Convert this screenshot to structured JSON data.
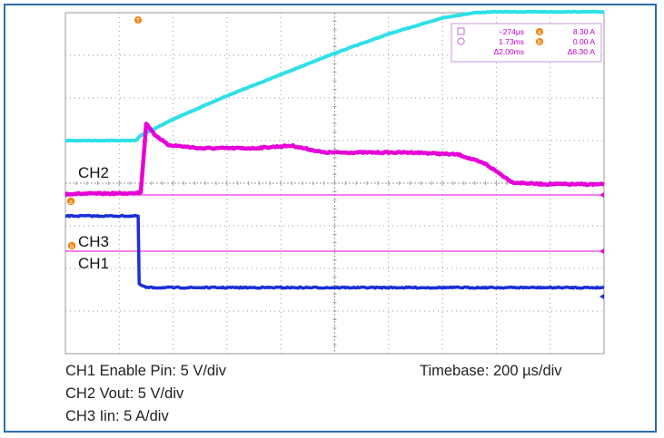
{
  "chart_data": {
    "type": "line",
    "title": "",
    "x_unit": "µs",
    "xlim": [
      -100,
      1900
    ],
    "grid": true,
    "grid_divisions": {
      "x": 10,
      "y": 8
    },
    "series": [
      {
        "name": "CH2",
        "scale": "5 V/div",
        "color": "#2ee0e8",
        "points_div": [
          [
            0.0,
            5.0
          ],
          [
            1.3,
            5.0
          ],
          [
            1.4,
            5.12
          ],
          [
            2.0,
            5.5
          ],
          [
            3.0,
            6.05
          ],
          [
            4.0,
            6.55
          ],
          [
            5.0,
            7.05
          ],
          [
            6.0,
            7.5
          ],
          [
            7.0,
            7.88
          ],
          [
            7.6,
            8.0
          ],
          [
            8.0,
            8.02
          ],
          [
            10.0,
            8.02
          ]
        ]
      },
      {
        "name": "CH3",
        "scale": "5 A/div",
        "color": "#e600d8",
        "points_div": [
          [
            0.0,
            3.75
          ],
          [
            1.25,
            3.76
          ],
          [
            1.4,
            3.8
          ],
          [
            1.5,
            5.4
          ],
          [
            1.65,
            5.15
          ],
          [
            1.9,
            4.9
          ],
          [
            2.5,
            4.82
          ],
          [
            3.5,
            4.82
          ],
          [
            4.2,
            4.88
          ],
          [
            4.8,
            4.72
          ],
          [
            6.5,
            4.72
          ],
          [
            7.3,
            4.67
          ],
          [
            7.8,
            4.45
          ],
          [
            8.3,
            4.02
          ],
          [
            8.8,
            3.98
          ],
          [
            10.0,
            3.97
          ]
        ]
      },
      {
        "name": "CH1",
        "scale": "5 V/div",
        "color": "#1a2fd6",
        "points_div": [
          [
            0.0,
            3.23
          ],
          [
            1.35,
            3.23
          ],
          [
            1.37,
            1.63
          ],
          [
            1.5,
            1.55
          ],
          [
            10.0,
            1.55
          ]
        ]
      }
    ],
    "markers": [
      {
        "label": "T",
        "color": "#f0820f",
        "x_div": 1.35
      },
      {
        "label": "a",
        "color": "#f0820f"
      },
      {
        "label": "b",
        "color": "#f0820f"
      }
    ],
    "cursor_readout": {
      "rows": [
        {
          "t": "−274µs",
          "v": "8.30 A",
          "t_icon": "square-icon",
          "v_icon": "a"
        },
        {
          "t": "1.73ms",
          "v": "0.00 A",
          "t_icon": "circle-icon",
          "v_icon": "b"
        },
        {
          "t": "Δ2.00ms",
          "v": "Δ8.30 A"
        }
      ]
    }
  },
  "channel_labels": {
    "ch2": "CH2",
    "ch3": "CH3",
    "ch1": "CH1"
  },
  "captions": {
    "ch1": "CH1 Enable Pin: 5 V/div",
    "ch2": "CH2 Vout: 5 V/div",
    "ch3": "CH3 Iin: 5 A/div",
    "timebase": "Timebase: 200 µs/div"
  },
  "colors": {
    "frame": "#2b6cb0",
    "grid": "#9a9a9a",
    "screen": "#ffffff",
    "cursor_line": "#e600d8"
  }
}
